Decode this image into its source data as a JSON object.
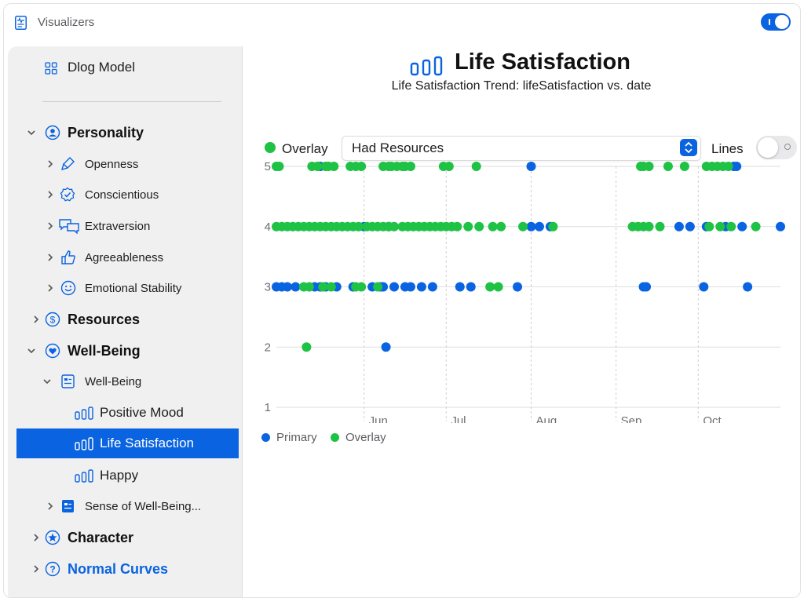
{
  "window": {
    "title": "Visualizers",
    "app_icon": "waveform-document-icon",
    "top_toggle": "on"
  },
  "sidebar": {
    "header": {
      "label": "Dlog Model",
      "icon": "grid-icon"
    },
    "items": [
      {
        "label": "Personality",
        "level": 0,
        "expanded": true,
        "icon": "person-circle-icon"
      },
      {
        "label": "Openness",
        "level": 1,
        "expanded": false,
        "icon": "paintbrush-icon"
      },
      {
        "label": "Conscientious",
        "level": 1,
        "expanded": false,
        "icon": "checkmark-seal-icon"
      },
      {
        "label": "Extraversion",
        "level": 1,
        "expanded": false,
        "icon": "speech-bubbles-icon"
      },
      {
        "label": "Agreeableness",
        "level": 1,
        "expanded": false,
        "icon": "thumbs-up-icon"
      },
      {
        "label": "Emotional Stability",
        "level": 1,
        "expanded": false,
        "icon": "smiley-icon"
      },
      {
        "label": "Resources",
        "level": 0,
        "expanded": false,
        "icon": "dollar-circle-icon"
      },
      {
        "label": "Well-Being",
        "level": 0,
        "expanded": true,
        "icon": "heart-circle-icon"
      },
      {
        "label": "Well-Being",
        "level": 1,
        "expanded": true,
        "icon": "list-doc-icon"
      },
      {
        "label": "Positive Mood",
        "level": 2,
        "icon": "bars-icon"
      },
      {
        "label": "Life Satisfaction",
        "level": 2,
        "icon": "bars-icon",
        "selected": true
      },
      {
        "label": "Happy",
        "level": 2,
        "icon": "bars-icon"
      },
      {
        "label": "Sense of Well-Being...",
        "level": 1,
        "expanded": false,
        "icon": "list-doc-filled-icon"
      },
      {
        "label": "Character",
        "level": 0,
        "expanded": false,
        "icon": "star-circle-icon"
      },
      {
        "label": "Normal Curves",
        "level": 0,
        "expanded": false,
        "icon": "question-circle-icon",
        "accent": true
      }
    ]
  },
  "main": {
    "title": "Life Satisfaction",
    "title_icon": "bars-icon",
    "subtitle": "Life Satisfaction Trend: lifeSatisfaction vs. date",
    "overlay_label": "Overlay",
    "overlay_select_value": "Had Resources",
    "lines_label": "Lines",
    "lines_toggle": "off"
  },
  "colors": {
    "accent": "#0a63e0",
    "primary": "#0a63e0",
    "overlay": "#1ec244"
  },
  "chart_data": {
    "type": "scatter",
    "y_ticks": [
      "1",
      "2",
      "3",
      "4",
      "5"
    ],
    "ylim": [
      1,
      5
    ],
    "x_ticks": [
      {
        "label": "Jun",
        "day": 32
      },
      {
        "label": "Jul",
        "day": 62
      },
      {
        "label": "Aug",
        "day": 93
      },
      {
        "label": "Sep",
        "day": 124
      },
      {
        "label": "Oct",
        "day": 154
      }
    ],
    "xlim": [
      0,
      184
    ],
    "legend": [
      {
        "name": "Primary",
        "color": "#0a63e0"
      },
      {
        "name": "Overlay",
        "color": "#1ec244"
      }
    ],
    "series": [
      {
        "name": "Primary",
        "points": [
          [
            16,
            5
          ],
          [
            93,
            5
          ],
          [
            167,
            5
          ],
          [
            168,
            5
          ],
          [
            32,
            4
          ],
          [
            41,
            4
          ],
          [
            93,
            4
          ],
          [
            96,
            4
          ],
          [
            100,
            4
          ],
          [
            147,
            4
          ],
          [
            151,
            4
          ],
          [
            157,
            4
          ],
          [
            164,
            4
          ],
          [
            170,
            4
          ],
          [
            184,
            4
          ],
          [
            0,
            3
          ],
          [
            2,
            3
          ],
          [
            4,
            3
          ],
          [
            7,
            3
          ],
          [
            14,
            3
          ],
          [
            16,
            3
          ],
          [
            18,
            3
          ],
          [
            22,
            3
          ],
          [
            28,
            3
          ],
          [
            35,
            3
          ],
          [
            38,
            3
          ],
          [
            39,
            3
          ],
          [
            43,
            3
          ],
          [
            47,
            3
          ],
          [
            49,
            3
          ],
          [
            53,
            3
          ],
          [
            57,
            3
          ],
          [
            67,
            3
          ],
          [
            71,
            3
          ],
          [
            88,
            3
          ],
          [
            134,
            3
          ],
          [
            135,
            3
          ],
          [
            156,
            3
          ],
          [
            172,
            3
          ],
          [
            40,
            2
          ]
        ]
      },
      {
        "name": "Overlay",
        "points": [
          [
            0,
            5
          ],
          [
            1,
            5
          ],
          [
            13,
            5
          ],
          [
            15,
            5
          ],
          [
            18,
            5
          ],
          [
            19,
            5
          ],
          [
            21,
            5
          ],
          [
            27,
            5
          ],
          [
            29,
            5
          ],
          [
            31,
            5
          ],
          [
            39,
            5
          ],
          [
            41,
            5
          ],
          [
            42,
            5
          ],
          [
            44,
            5
          ],
          [
            46,
            5
          ],
          [
            47,
            5
          ],
          [
            49,
            5
          ],
          [
            61,
            5
          ],
          [
            63,
            5
          ],
          [
            73,
            5
          ],
          [
            133,
            5
          ],
          [
            134,
            5
          ],
          [
            136,
            5
          ],
          [
            143,
            5
          ],
          [
            149,
            5
          ],
          [
            157,
            5
          ],
          [
            159,
            5
          ],
          [
            161,
            5
          ],
          [
            163,
            5
          ],
          [
            165,
            5
          ],
          [
            0,
            4
          ],
          [
            2,
            4
          ],
          [
            4,
            4
          ],
          [
            6,
            4
          ],
          [
            8,
            4
          ],
          [
            10,
            4
          ],
          [
            12,
            4
          ],
          [
            14,
            4
          ],
          [
            16,
            4
          ],
          [
            18,
            4
          ],
          [
            20,
            4
          ],
          [
            22,
            4
          ],
          [
            24,
            4
          ],
          [
            26,
            4
          ],
          [
            28,
            4
          ],
          [
            30,
            4
          ],
          [
            33,
            4
          ],
          [
            35,
            4
          ],
          [
            37,
            4
          ],
          [
            39,
            4
          ],
          [
            41,
            4
          ],
          [
            43,
            4
          ],
          [
            46,
            4
          ],
          [
            48,
            4
          ],
          [
            50,
            4
          ],
          [
            52,
            4
          ],
          [
            54,
            4
          ],
          [
            56,
            4
          ],
          [
            58,
            4
          ],
          [
            60,
            4
          ],
          [
            62,
            4
          ],
          [
            64,
            4
          ],
          [
            66,
            4
          ],
          [
            70,
            4
          ],
          [
            74,
            4
          ],
          [
            79,
            4
          ],
          [
            82,
            4
          ],
          [
            90,
            4
          ],
          [
            101,
            4
          ],
          [
            130,
            4
          ],
          [
            132,
            4
          ],
          [
            134,
            4
          ],
          [
            136,
            4
          ],
          [
            140,
            4
          ],
          [
            158,
            4
          ],
          [
            162,
            4
          ],
          [
            166,
            4
          ],
          [
            175,
            4
          ],
          [
            10,
            3
          ],
          [
            12,
            3
          ],
          [
            17,
            3
          ],
          [
            20,
            3
          ],
          [
            29,
            3
          ],
          [
            31,
            3
          ],
          [
            37,
            3
          ],
          [
            78,
            3
          ],
          [
            81,
            3
          ],
          [
            11,
            2
          ]
        ]
      }
    ]
  }
}
